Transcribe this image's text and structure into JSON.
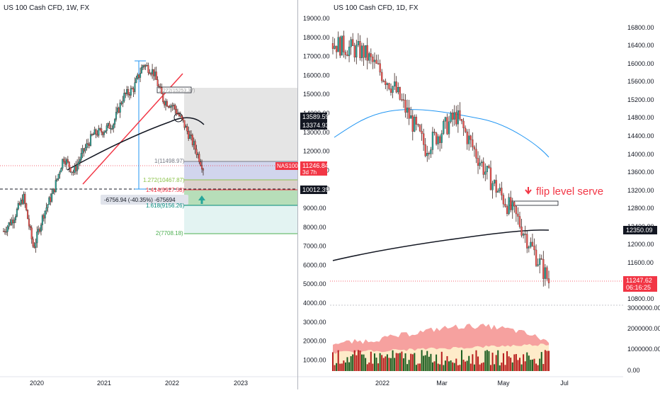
{
  "left_panel": {
    "title": "US 100 Cash CFD, 1W, FX",
    "y_ticks": [
      "19000.00",
      "18000.00",
      "17000.00",
      "16000.00",
      "15000.00",
      "14000.00",
      "13000.00",
      "12000.00",
      "11000.00",
      "10000.00",
      "9000.00",
      "8000.00",
      "7000.00",
      "6000.00",
      "5000.00",
      "4000.00",
      "3000.00",
      "2000.00",
      "1000.00"
    ],
    "x_ticks": [
      "2020",
      "2021",
      "2022",
      "2023"
    ],
    "price_labels": {
      "upper_1": "13589.59",
      "upper_2": "13374.93",
      "nas_tag": "NAS100",
      "nas_price": "11246.84",
      "nas_time": "3d 7h",
      "line_level": "10012.39"
    },
    "fib_labels": {
      "f1": "1(11498.97)",
      "f1272": "1.272(10467.87)",
      "f1414": "1.414(9927.58)",
      "f1618": "1.618(9156.26)",
      "f2": "2(7708.18)",
      "top": "1.272(15253.37)"
    },
    "measure_label": "-6756.94 (-40.35%) -675694"
  },
  "right_panel": {
    "title": "US 100 Cash CFD, 1D, FX",
    "y_ticks": [
      "16800.00",
      "16400.00",
      "16000.00",
      "15600.00",
      "15200.00",
      "14800.00",
      "14400.00",
      "14000.00",
      "13600.00",
      "13200.00",
      "12800.00",
      "12400.00",
      "12000.00",
      "11600.00",
      "10800.00"
    ],
    "x_ticks": [
      "2022",
      "Mar",
      "May",
      "Jul"
    ],
    "annotation": "flip level serve",
    "ma_label": "12350.09",
    "last_price": "11247.62",
    "countdown": "06:16:25",
    "volume_ticks": [
      "3000000.00",
      "2000000.00",
      "1000000.00",
      "0.00"
    ]
  },
  "colors": {
    "bull": "#26a69a",
    "bear": "#ef5350",
    "dark_candle": "#3e2723",
    "red_tag": "#f23645",
    "ma_blue": "#2196f3",
    "fib_1272": "#8bc34a",
    "fib_1414": "#f23645",
    "fib_1618": "#00897b"
  },
  "chart_data": [
    {
      "type": "line",
      "title": "US 100 Cash CFD, 1W, FX",
      "x_axis_labels": [
        "2020",
        "2021",
        "2022",
        "2023"
      ],
      "ylim": [
        0,
        19500
      ],
      "series": [
        {
          "name": "NAS100",
          "x": [
            "2019-10",
            "2019-12",
            "2020-02",
            "2020-03",
            "2020-04",
            "2020-06",
            "2020-08",
            "2020-09",
            "2020-11",
            "2021-01",
            "2021-03",
            "2021-05",
            "2021-07",
            "2021-09",
            "2021-11",
            "2021-12",
            "2022-01",
            "2022-03",
            "2022-04",
            "2022-05",
            "2022-06"
          ],
          "values": [
            7900,
            8600,
            9700,
            7000,
            8800,
            10000,
            11800,
            11000,
            12100,
            13000,
            13200,
            13600,
            15000,
            15400,
            16700,
            16300,
            14800,
            14500,
            13600,
            12500,
            11247
          ]
        }
      ],
      "fib_levels": [
        {
          "label": "1(11498.97)",
          "value": 11498.97
        },
        {
          "label": "1.272(10467.87)",
          "value": 10467.87
        },
        {
          "label": "1.414(9927.58)",
          "value": 9927.58
        },
        {
          "label": "1.618(9156.26)",
          "value": 9156.26
        },
        {
          "label": "2(7708.18)",
          "value": 7708.18
        }
      ]
    },
    {
      "type": "line",
      "title": "US 100 Cash CFD, 1D, FX",
      "x_axis_labels": [
        "2022",
        "Mar",
        "May",
        "Jul"
      ],
      "ylim": [
        10500,
        17100
      ],
      "series": [
        {
          "name": "NAS100 price",
          "x": [
            "2021-11",
            "2021-12",
            "2022-01",
            "2022-02",
            "2022-03",
            "2022-04",
            "2022-05",
            "2022-06"
          ],
          "values": [
            16500,
            16300,
            15500,
            14200,
            14900,
            13600,
            12600,
            11247
          ]
        },
        {
          "name": "12350.09",
          "values": [
            11200,
            11600,
            11900,
            12100,
            12250,
            12350
          ]
        }
      ]
    }
  ]
}
